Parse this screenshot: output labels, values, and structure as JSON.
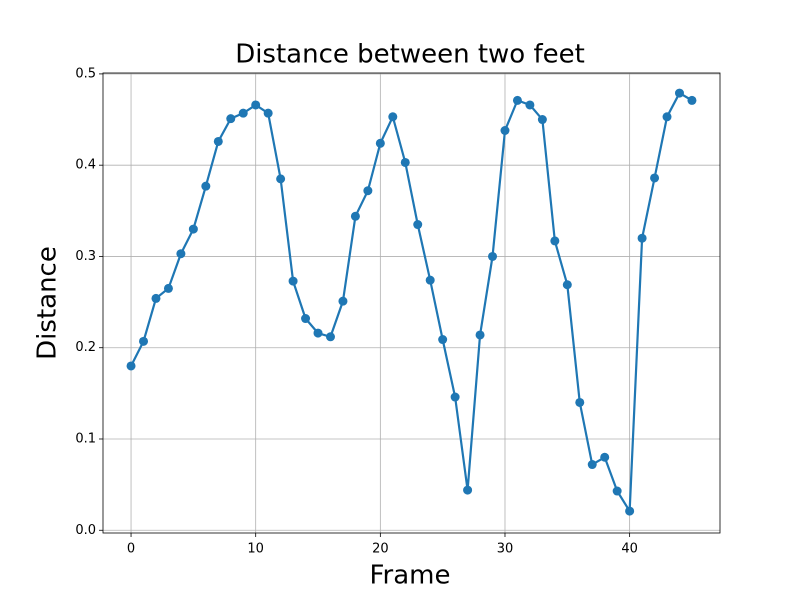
{
  "chart_data": {
    "type": "line",
    "title": "Distance between two feet",
    "x_label": "Frame",
    "y_label": "Distance",
    "x": [
      0,
      1,
      2,
      3,
      4,
      5,
      6,
      7,
      8,
      9,
      10,
      11,
      12,
      13,
      14,
      15,
      16,
      17,
      18,
      19,
      20,
      21,
      22,
      23,
      24,
      25,
      26,
      27,
      28,
      29,
      30,
      31,
      32,
      33,
      34,
      35,
      36,
      37,
      38,
      39,
      40,
      41,
      42,
      43,
      44,
      45
    ],
    "series": [
      {
        "color": "#1f77b4",
        "values": [
          0.18,
          0.207,
          0.254,
          0.265,
          0.303,
          0.33,
          0.377,
          0.426,
          0.451,
          0.457,
          0.466,
          0.457,
          0.385,
          0.273,
          0.232,
          0.216,
          0.212,
          0.251,
          0.344,
          0.372,
          0.424,
          0.453,
          0.403,
          0.335,
          0.274,
          0.209,
          0.146,
          0.044,
          0.214,
          0.3,
          0.438,
          0.471,
          0.466,
          0.45,
          0.317,
          0.269,
          0.14,
          0.072,
          0.08,
          0.043,
          0.021,
          0.32,
          0.386,
          0.453,
          0.479,
          0.471
        ]
      }
    ],
    "xlim": [
      -2.25,
      47.25
    ],
    "xticks": [
      0,
      10,
      20,
      30,
      40
    ],
    "ylim": [
      -0.003,
      0.501
    ],
    "yticks": [
      0.0,
      0.1,
      0.2,
      0.3,
      0.4,
      0.5
    ],
    "grid": true
  }
}
